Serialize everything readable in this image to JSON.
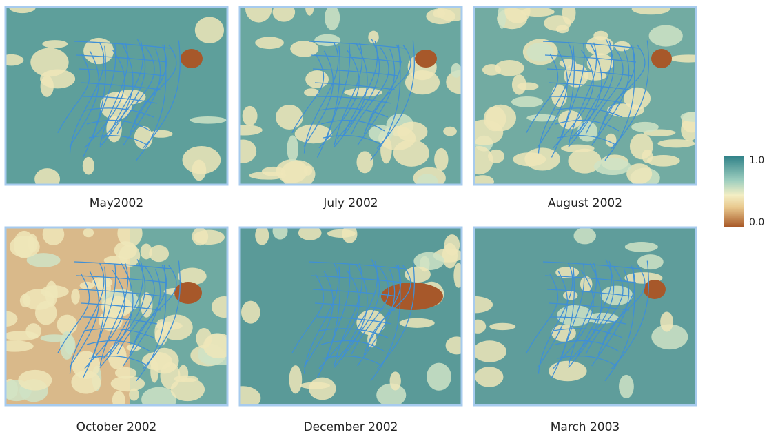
{
  "panels": [
    {
      "label": "May2002"
    },
    {
      "label": "July 2002"
    },
    {
      "label": "August 2002"
    },
    {
      "label": "October 2002"
    },
    {
      "label": "December 2002"
    },
    {
      "label": "March 2003"
    }
  ],
  "colorbar": {
    "max_label": "1.0",
    "min_label": "0.0"
  }
}
